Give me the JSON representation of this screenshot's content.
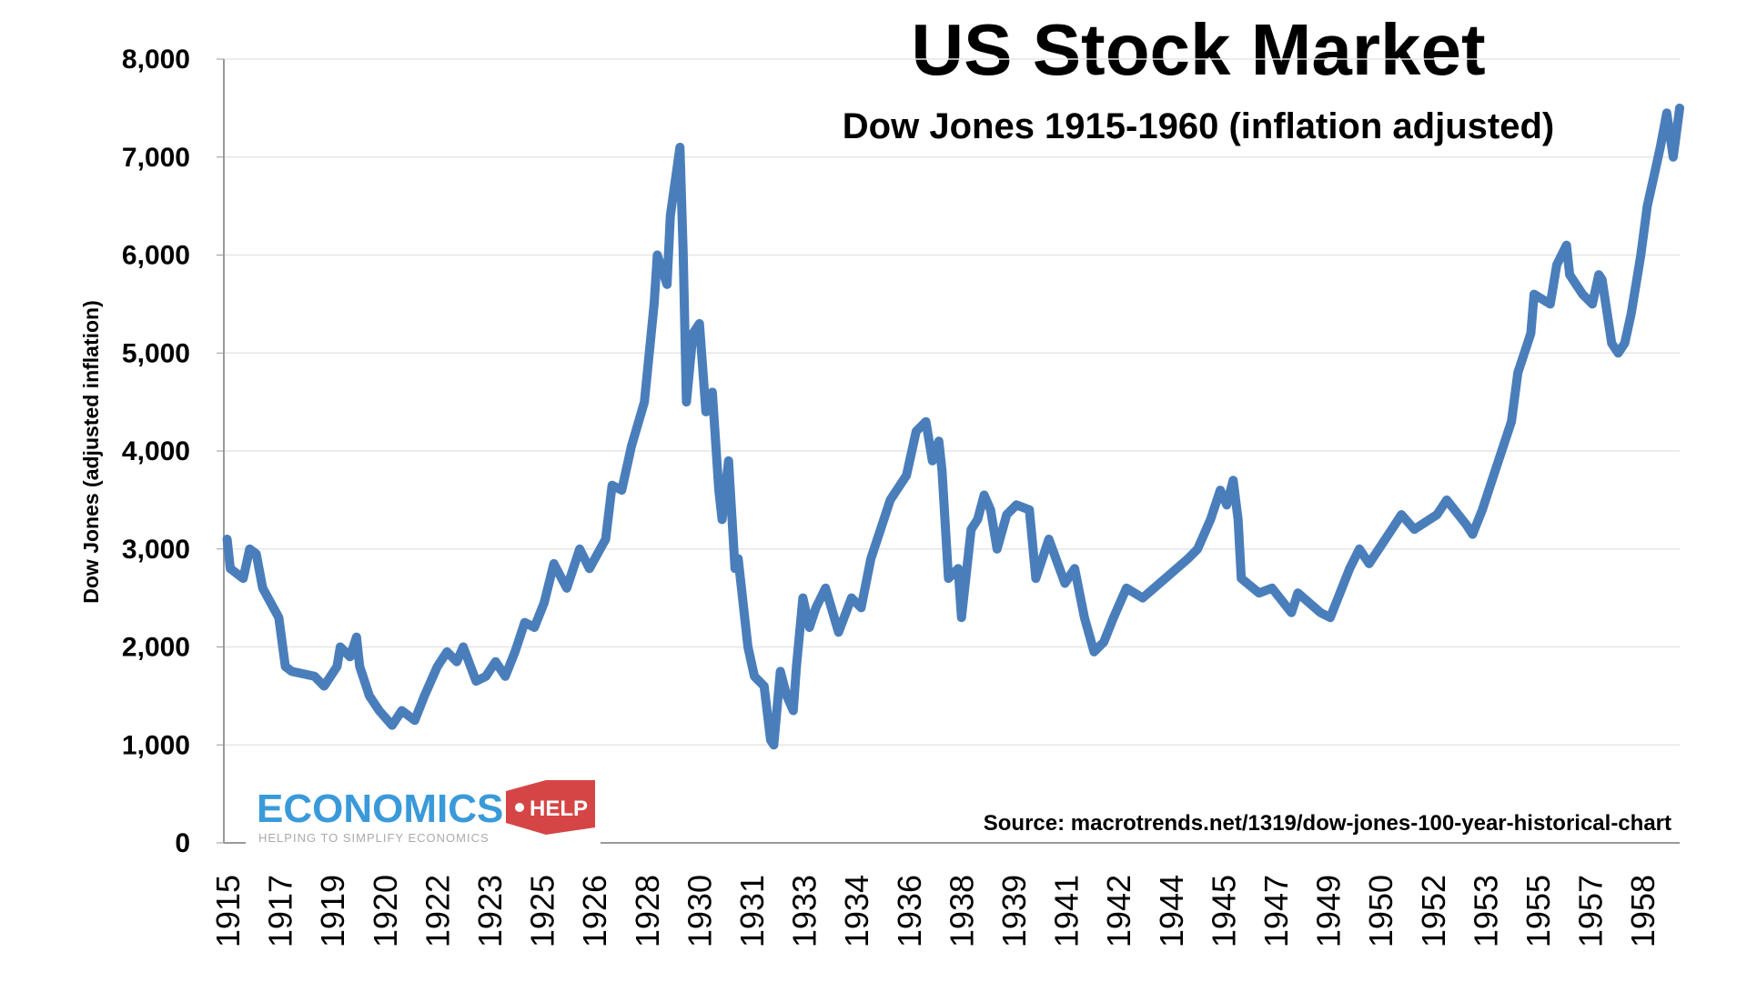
{
  "chart_data": {
    "type": "line",
    "title": "US Stock Market",
    "subtitle": "Dow Jones 1915-1960 (inflation adjusted)",
    "xlabel": "",
    "ylabel": "Dow Jones (adjusted inflation)",
    "xlim": [
      1915,
      1960
    ],
    "ylim": [
      0,
      8000
    ],
    "yticks": [
      "0",
      "1,000",
      "2,000",
      "3,000",
      "4,000",
      "5,000",
      "6,000",
      "7,000",
      "8,000"
    ],
    "xticks": [
      "1915",
      "1917",
      "1919",
      "1920",
      "1922",
      "1923",
      "1925",
      "1926",
      "1928",
      "1930",
      "1931",
      "1933",
      "1934",
      "1936",
      "1938",
      "1939",
      "1941",
      "1942",
      "1944",
      "1945",
      "1947",
      "1949",
      "1950",
      "1952",
      "1953",
      "1955",
      "1957",
      "1958"
    ],
    "grid": true,
    "line_color": "#4a7ebb",
    "source": "Source: macrotrends.net/1319/dow-jones-100-year-historical-chart",
    "series": [
      {
        "x": [
          1915.1,
          1915.2,
          1915.6,
          1915.8,
          1916.0,
          1916.2,
          1916.7,
          1916.9,
          1917.1,
          1917.8,
          1918.1,
          1918.5,
          1918.6,
          1918.9,
          1919.1,
          1919.2,
          1919.5,
          1919.8,
          1920.2,
          1920.5,
          1920.9,
          1921.2,
          1921.6,
          1921.9,
          1922.2,
          1922.4,
          1922.8,
          1923.1,
          1923.4,
          1923.7,
          1924.0,
          1924.3,
          1924.6,
          1924.9,
          1925.2,
          1925.6,
          1926.0,
          1926.3,
          1926.8,
          1927.0,
          1927.3,
          1927.6,
          1928.0,
          1928.3,
          1928.4,
          1928.7,
          1928.8,
          1929.1,
          1929.2,
          1929.3,
          1929.5,
          1929.7,
          1929.9,
          1930.1,
          1930.3,
          1930.4,
          1930.6,
          1930.8,
          1930.9,
          1931.2,
          1931.4,
          1931.7,
          1931.9,
          1932.0,
          1932.2,
          1932.4,
          1932.6,
          1932.7,
          1932.9,
          1933.1,
          1933.3,
          1933.6,
          1934.0,
          1934.4,
          1934.7,
          1935.0,
          1935.3,
          1935.6,
          1936.1,
          1936.4,
          1936.7,
          1936.9,
          1937.1,
          1937.2,
          1937.4,
          1937.7,
          1937.8,
          1938.1,
          1938.3,
          1938.5,
          1938.7,
          1938.9,
          1939.2,
          1939.5,
          1939.9,
          1940.1,
          1940.5,
          1941.0,
          1941.3,
          1941.6,
          1941.9,
          1942.2,
          1942.5,
          1942.9,
          1943.4,
          1944.1,
          1944.8,
          1945.1,
          1945.5,
          1945.8,
          1946.0,
          1946.2,
          1946.35,
          1946.45,
          1947.0,
          1947.4,
          1948.0,
          1948.2,
          1948.9,
          1949.2,
          1949.8,
          1950.1,
          1950.4,
          1951.1,
          1951.4,
          1951.8,
          1952.5,
          1952.8,
          1953.4,
          1953.6,
          1953.9,
          1954.3,
          1954.8,
          1955.0,
          1955.4,
          1955.5,
          1956.0,
          1956.2,
          1956.5,
          1956.6,
          1957.0,
          1957.3,
          1957.5,
          1957.6,
          1957.9,
          1958.1,
          1958.3,
          1958.5,
          1958.8,
          1959.0,
          1959.2,
          1959.4,
          1959.6,
          1959.8,
          1960.0
        ],
        "values": [
          3100,
          2800,
          2700,
          3000,
          2950,
          2600,
          2300,
          1800,
          1750,
          1700,
          1600,
          1800,
          2000,
          1900,
          2100,
          1800,
          1500,
          1350,
          1200,
          1350,
          1250,
          1500,
          1800,
          1950,
          1850,
          2000,
          1650,
          1700,
          1850,
          1700,
          1950,
          2250,
          2200,
          2450,
          2850,
          2600,
          3000,
          2800,
          3100,
          3650,
          3600,
          4050,
          4500,
          5500,
          6000,
          5700,
          6400,
          7100,
          6000,
          4500,
          5200,
          5300,
          4400,
          4600,
          3600,
          3300,
          3900,
          2800,
          2900,
          2000,
          1700,
          1600,
          1050,
          1000,
          1750,
          1500,
          1350,
          1800,
          2500,
          2200,
          2400,
          2600,
          2150,
          2500,
          2400,
          2900,
          3200,
          3500,
          3750,
          4200,
          4300,
          3900,
          4100,
          3800,
          2700,
          2800,
          2300,
          3200,
          3300,
          3550,
          3400,
          3000,
          3350,
          3450,
          3400,
          2700,
          3100,
          2650,
          2800,
          2300,
          1950,
          2050,
          2300,
          2600,
          2500,
          2700,
          2900,
          3000,
          3300,
          3600,
          3450,
          3700,
          3300,
          2700,
          2550,
          2600,
          2350,
          2550,
          2350,
          2300,
          2800,
          3000,
          2850,
          3200,
          3350,
          3200,
          3350,
          3500,
          3250,
          3150,
          3400,
          3800,
          4300,
          4800,
          5200,
          5600,
          5500,
          5900,
          6100,
          5800,
          5600,
          5500,
          5800,
          5750,
          5100,
          5000,
          5100,
          5400,
          6000,
          6500,
          6800,
          7100,
          7450,
          7000,
          7500
        ]
      }
    ]
  },
  "logo": {
    "main": "ECONOMICS",
    "badge": "HELP",
    "tagline": "HELPING TO SIMPLIFY ECONOMICS"
  }
}
